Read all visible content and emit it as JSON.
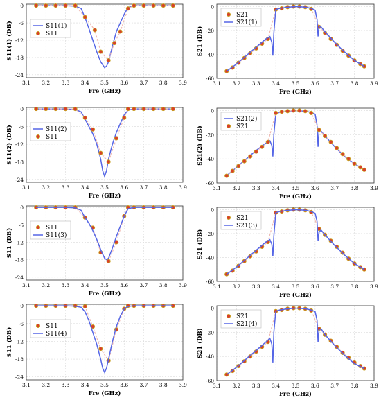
{
  "colors": {
    "line": "#5566e6",
    "marker_face": "#d8402a",
    "marker_edge": "#c8a020",
    "frame": "#333333"
  },
  "chart_data": [
    {
      "type": "line",
      "xlabel": "Fre (GHz)",
      "ylabel": "S11(1) (DB)",
      "xlim": [
        3.1,
        3.9
      ],
      "ylim": [
        -25,
        0.5
      ],
      "xticks": [
        "3.1",
        "3.2",
        "3.3",
        "3.4",
        "3.5",
        "3.6",
        "3.7",
        "3.8",
        "3.9"
      ],
      "yticks": [
        "0",
        "-6",
        "-12",
        "-18",
        "-24"
      ],
      "legend_position": "top-center",
      "series": [
        {
          "name": "S11(1)",
          "style": "line",
          "x": [
            3.15,
            3.2,
            3.25,
            3.3,
            3.35,
            3.38,
            3.4,
            3.42,
            3.44,
            3.46,
            3.48,
            3.5,
            3.51,
            3.52,
            3.54,
            3.56,
            3.58,
            3.6,
            3.62,
            3.65,
            3.7,
            3.75,
            3.8,
            3.85
          ],
          "y": [
            0,
            0,
            0,
            0,
            -0.2,
            -1,
            -4.2,
            -8,
            -12,
            -16,
            -19.5,
            -21.5,
            -21,
            -19.5,
            -14,
            -9,
            -6,
            -3,
            -0.6,
            0,
            0,
            0,
            0,
            0
          ]
        },
        {
          "name": "S11",
          "style": "marker",
          "x": [
            3.15,
            3.2,
            3.25,
            3.3,
            3.35,
            3.4,
            3.45,
            3.48,
            3.52,
            3.55,
            3.58,
            3.62,
            3.65,
            3.7,
            3.75,
            3.8,
            3.85
          ],
          "y": [
            0,
            0,
            0,
            0,
            0,
            -4,
            -8.5,
            -16,
            -19,
            -13,
            -9,
            -1,
            0,
            0,
            0,
            0,
            0
          ]
        }
      ]
    },
    {
      "type": "line",
      "xlabel": "Fre (GHz)",
      "ylabel": "S21 (DB)",
      "xlim": [
        3.1,
        3.9
      ],
      "ylim": [
        -60,
        2
      ],
      "xticks": [
        "3.1",
        "3.2",
        "3.3",
        "3.4",
        "3.5",
        "3.6",
        "3.7",
        "3.8",
        "3.9"
      ],
      "yticks": [
        "0",
        "-20",
        "-40",
        "-60"
      ],
      "legend_position": "top-left",
      "series": [
        {
          "name": "S21",
          "style": "marker",
          "x": [
            3.15,
            3.18,
            3.21,
            3.24,
            3.27,
            3.3,
            3.33,
            3.36,
            3.4,
            3.43,
            3.46,
            3.49,
            3.52,
            3.55,
            3.58,
            3.62,
            3.65,
            3.68,
            3.71,
            3.74,
            3.77,
            3.8,
            3.83,
            3.85
          ],
          "y": [
            -54,
            -51,
            -47,
            -43,
            -39,
            -35,
            -31,
            -27,
            -2.5,
            -1.5,
            -0.5,
            0,
            0,
            -0.5,
            -2,
            -17,
            -22,
            -27,
            -32,
            -37,
            -41,
            -45,
            -48,
            -50
          ]
        },
        {
          "name": "S21(1)",
          "style": "line",
          "x": [
            3.15,
            3.2,
            3.25,
            3.3,
            3.35,
            3.37,
            3.38,
            3.385,
            3.39,
            3.4,
            3.42,
            3.45,
            3.5,
            3.55,
            3.58,
            3.6,
            3.61,
            3.615,
            3.62,
            3.63,
            3.65,
            3.7,
            3.75,
            3.8,
            3.85
          ],
          "y": [
            -54,
            -48,
            -41,
            -34,
            -27,
            -25,
            -30,
            -41,
            -22,
            -2.5,
            -1.5,
            -0.8,
            0,
            -0.5,
            -1.5,
            -3,
            -11,
            -25,
            -17,
            -17,
            -21,
            -30,
            -38,
            -45,
            -50
          ]
        }
      ]
    },
    {
      "type": "line",
      "xlabel": "Fre (GHz)",
      "ylabel": "S11(2) (DB)",
      "xlim": [
        3.1,
        3.9
      ],
      "ylim": [
        -25,
        0.5
      ],
      "xticks": [
        "3.1",
        "3.2",
        "3.3",
        "3.4",
        "3.5",
        "3.6",
        "3.7",
        "3.8",
        "3.9"
      ],
      "yticks": [
        "0",
        "-6",
        "-12",
        "-18",
        "-24"
      ],
      "legend_position": "center-left",
      "series": [
        {
          "name": "S11(2)",
          "style": "line",
          "x": [
            3.15,
            3.2,
            3.25,
            3.3,
            3.35,
            3.38,
            3.4,
            3.42,
            3.44,
            3.46,
            3.48,
            3.49,
            3.5,
            3.51,
            3.52,
            3.54,
            3.56,
            3.58,
            3.6,
            3.62,
            3.65,
            3.7,
            3.75,
            3.8,
            3.85
          ],
          "y": [
            0,
            0,
            0,
            0,
            -0.2,
            -1,
            -3.5,
            -6,
            -8.5,
            -12,
            -17,
            -21,
            -23,
            -21,
            -17,
            -12,
            -8,
            -5,
            -2,
            -0.4,
            0,
            0,
            0,
            0,
            0
          ]
        },
        {
          "name": "S11",
          "style": "marker",
          "x": [
            3.15,
            3.2,
            3.25,
            3.3,
            3.35,
            3.4,
            3.44,
            3.48,
            3.52,
            3.56,
            3.6,
            3.62,
            3.65,
            3.7,
            3.75,
            3.8,
            3.85
          ],
          "y": [
            0,
            0,
            0,
            0,
            0,
            -3,
            -7,
            -15,
            -18,
            -10,
            -3,
            0,
            0,
            0,
            0,
            0,
            0
          ]
        }
      ]
    },
    {
      "type": "line",
      "xlabel": "Fre (GHz)",
      "ylabel": "S21(2) (DB)",
      "xlim": [
        3.1,
        3.9
      ],
      "ylim": [
        -60,
        2
      ],
      "xticks": [
        "3.1",
        "3.2",
        "3.3",
        "3.4",
        "3.5",
        "3.6",
        "3.7",
        "3.8",
        "3.9"
      ],
      "yticks": [
        "0",
        "-20",
        "-40",
        "-60"
      ],
      "legend_position": "top-left",
      "series": [
        {
          "name": "S21(2)",
          "style": "line",
          "x": [
            3.15,
            3.2,
            3.25,
            3.3,
            3.35,
            3.37,
            3.38,
            3.385,
            3.39,
            3.4,
            3.42,
            3.45,
            3.5,
            3.55,
            3.58,
            3.6,
            3.61,
            3.615,
            3.62,
            3.63,
            3.65,
            3.7,
            3.75,
            3.8,
            3.85
          ],
          "y": [
            -54,
            -47,
            -40,
            -33,
            -27,
            -25,
            -29,
            -38,
            -20,
            -2.5,
            -1.5,
            -0.8,
            0,
            -0.5,
            -1.5,
            -3,
            -12,
            -30,
            -16,
            -17,
            -21,
            -30,
            -38,
            -44,
            -49
          ]
        },
        {
          "name": "S21",
          "style": "marker",
          "x": [
            3.15,
            3.18,
            3.21,
            3.24,
            3.27,
            3.3,
            3.33,
            3.36,
            3.4,
            3.43,
            3.46,
            3.49,
            3.52,
            3.55,
            3.58,
            3.62,
            3.65,
            3.68,
            3.71,
            3.74,
            3.77,
            3.8,
            3.83,
            3.85
          ],
          "y": [
            -54,
            -50,
            -46,
            -42,
            -38,
            -34,
            -30,
            -26,
            -2,
            -1,
            -0.5,
            0,
            0,
            -0.5,
            -2,
            -16,
            -21,
            -26,
            -31,
            -36,
            -40,
            -44,
            -47,
            -49
          ]
        }
      ]
    },
    {
      "type": "line",
      "xlabel": "Fre (GHz)",
      "ylabel": "S11 (DB)",
      "xlim": [
        3.1,
        3.9
      ],
      "ylim": [
        -25,
        0.5
      ],
      "xticks": [
        "3.1",
        "3.2",
        "3.3",
        "3.4",
        "3.5",
        "3.6",
        "3.7",
        "3.8",
        "3.9"
      ],
      "yticks": [
        "0",
        "-6",
        "-12",
        "-18",
        "-24"
      ],
      "legend_position": "center-left",
      "series": [
        {
          "name": "S11",
          "style": "marker",
          "x": [
            3.15,
            3.2,
            3.25,
            3.3,
            3.35,
            3.4,
            3.44,
            3.48,
            3.52,
            3.56,
            3.6,
            3.62,
            3.65,
            3.7,
            3.75,
            3.8,
            3.85
          ],
          "y": [
            0,
            0,
            0,
            0,
            0,
            -3.5,
            -7,
            -15.5,
            -18.5,
            -12,
            -3,
            0,
            0,
            0,
            0,
            0,
            0
          ]
        },
        {
          "name": "S11(3)",
          "style": "line",
          "x": [
            3.15,
            3.2,
            3.25,
            3.3,
            3.35,
            3.38,
            3.4,
            3.42,
            3.44,
            3.46,
            3.48,
            3.5,
            3.51,
            3.52,
            3.54,
            3.56,
            3.58,
            3.6,
            3.62,
            3.65,
            3.7,
            3.75,
            3.8,
            3.85
          ],
          "y": [
            0,
            0,
            0,
            0,
            -0.2,
            -1,
            -3.5,
            -5.5,
            -8,
            -11,
            -14.5,
            -17.5,
            -18,
            -17.5,
            -14,
            -10,
            -6.5,
            -3,
            -0.5,
            0,
            0,
            0,
            0,
            0
          ]
        }
      ]
    },
    {
      "type": "line",
      "xlabel": "Fre (GHz)",
      "ylabel": "S21 (DB)",
      "xlim": [
        3.1,
        3.9
      ],
      "ylim": [
        -60,
        2
      ],
      "xticks": [
        "3.1",
        "3.2",
        "3.3",
        "3.4",
        "3.5",
        "3.6",
        "3.7",
        "3.8",
        "3.9"
      ],
      "yticks": [
        "0",
        "-20",
        "-40",
        "-60"
      ],
      "legend_position": "top-left",
      "series": [
        {
          "name": "S21",
          "style": "marker",
          "x": [
            3.15,
            3.18,
            3.21,
            3.24,
            3.27,
            3.3,
            3.33,
            3.36,
            3.4,
            3.43,
            3.46,
            3.49,
            3.52,
            3.55,
            3.58,
            3.62,
            3.65,
            3.68,
            3.71,
            3.74,
            3.77,
            3.8,
            3.83,
            3.85
          ],
          "y": [
            -54,
            -51,
            -47,
            -43,
            -39,
            -35,
            -31,
            -27,
            -2.5,
            -1.5,
            -0.5,
            0,
            0,
            -0.5,
            -2,
            -16,
            -21,
            -26,
            -31,
            -36,
            -41,
            -45,
            -48,
            -50
          ]
        },
        {
          "name": "S21(3)",
          "style": "line",
          "x": [
            3.15,
            3.2,
            3.25,
            3.3,
            3.35,
            3.37,
            3.38,
            3.385,
            3.39,
            3.4,
            3.42,
            3.45,
            3.5,
            3.55,
            3.58,
            3.6,
            3.61,
            3.615,
            3.62,
            3.63,
            3.65,
            3.7,
            3.75,
            3.8,
            3.85
          ],
          "y": [
            -54,
            -48,
            -41,
            -34,
            -27,
            -25,
            -29,
            -39,
            -22,
            -2.5,
            -1.5,
            -0.8,
            0,
            -0.5,
            -1.5,
            -3,
            -10,
            -26,
            -19,
            -17,
            -21,
            -30,
            -38,
            -45,
            -50
          ]
        }
      ]
    },
    {
      "type": "line",
      "xlabel": "Fre (GHz)",
      "ylabel": "S11 (DB)",
      "xlim": [
        3.1,
        3.9
      ],
      "ylim": [
        -25,
        0.5
      ],
      "xticks": [
        "3.1",
        "3.2",
        "3.3",
        "3.4",
        "3.5",
        "3.6",
        "3.7",
        "3.8",
        "3.9"
      ],
      "yticks": [
        "0",
        "-6",
        "-12",
        "-18",
        "-24"
      ],
      "legend_position": "center-left",
      "series": [
        {
          "name": "S11",
          "style": "marker",
          "x": [
            3.15,
            3.2,
            3.25,
            3.3,
            3.35,
            3.4,
            3.44,
            3.48,
            3.52,
            3.56,
            3.6,
            3.62,
            3.65,
            3.7,
            3.75,
            3.8,
            3.85
          ],
          "y": [
            0,
            0,
            0,
            0,
            0,
            -0.2,
            -7,
            -14.5,
            -18.5,
            -8,
            -1,
            0,
            0,
            0,
            0,
            0,
            0
          ]
        },
        {
          "name": "S11(4)",
          "style": "line",
          "x": [
            3.15,
            3.2,
            3.25,
            3.3,
            3.35,
            3.38,
            3.4,
            3.42,
            3.44,
            3.46,
            3.48,
            3.49,
            3.5,
            3.51,
            3.52,
            3.54,
            3.56,
            3.58,
            3.6,
            3.62,
            3.65,
            3.7,
            3.75,
            3.8,
            3.85
          ],
          "y": [
            0,
            0,
            0,
            0,
            -0.1,
            -0.5,
            -2,
            -5,
            -9,
            -13,
            -18,
            -21,
            -22.5,
            -21,
            -18,
            -12,
            -7,
            -3.5,
            -1,
            -0.2,
            0,
            0,
            0,
            0,
            0
          ]
        }
      ]
    },
    {
      "type": "line",
      "xlabel": "Fre (GHz)",
      "ylabel": "S21 (DB)",
      "xlim": [
        3.1,
        3.9
      ],
      "ylim": [
        -60,
        2
      ],
      "xticks": [
        "3.1",
        "3.2",
        "3.3",
        "3.4",
        "3.5",
        "3.6",
        "3.7",
        "3.8",
        "3.9"
      ],
      "yticks": [
        "0",
        "-20",
        "-40",
        "-60"
      ],
      "legend_position": "top-left",
      "series": [
        {
          "name": "S21",
          "style": "marker",
          "x": [
            3.15,
            3.18,
            3.21,
            3.24,
            3.27,
            3.3,
            3.33,
            3.36,
            3.4,
            3.43,
            3.46,
            3.49,
            3.52,
            3.55,
            3.58,
            3.62,
            3.65,
            3.68,
            3.71,
            3.74,
            3.77,
            3.8,
            3.83,
            3.85
          ],
          "y": [
            -55,
            -52,
            -48,
            -44,
            -40,
            -36,
            -32,
            -28,
            -2.5,
            -1.5,
            -0.5,
            0,
            0,
            -0.5,
            -2,
            -17,
            -22,
            -27,
            -32,
            -37,
            -41,
            -45,
            -48,
            -50
          ]
        },
        {
          "name": "S21(4)",
          "style": "line",
          "x": [
            3.15,
            3.2,
            3.25,
            3.3,
            3.35,
            3.37,
            3.38,
            3.385,
            3.39,
            3.4,
            3.42,
            3.45,
            3.5,
            3.55,
            3.58,
            3.6,
            3.61,
            3.615,
            3.62,
            3.63,
            3.65,
            3.7,
            3.75,
            3.8,
            3.85
          ],
          "y": [
            -55,
            -49,
            -42,
            -35,
            -28,
            -25,
            -30,
            -45,
            -20,
            -2.5,
            -1.5,
            -0.8,
            0,
            -0.5,
            -1.5,
            -3,
            -10,
            -28,
            -18,
            -17,
            -22,
            -31,
            -39,
            -46,
            -50
          ]
        }
      ]
    }
  ]
}
